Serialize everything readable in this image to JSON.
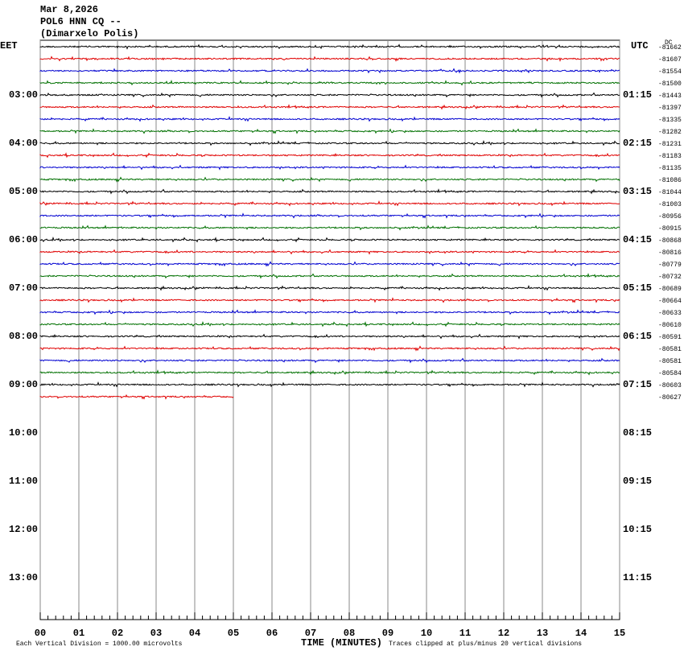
{
  "header": {
    "date": "Mar 8,2026",
    "station": "POL6 HNN CQ --",
    "location": "(Dimarxelo Polis)"
  },
  "left_zone": "EET",
  "right_zone": "UTC",
  "dc_label": "DC",
  "left_hours": [
    "03:00",
    "04:00",
    "05:00",
    "06:00",
    "07:00",
    "08:00",
    "09:00",
    "10:00",
    "11:00",
    "12:00",
    "13:00"
  ],
  "right_hours": [
    "01:15",
    "02:15",
    "03:15",
    "04:15",
    "05:15",
    "06:15",
    "07:15",
    "08:15",
    "09:15",
    "10:15",
    "11:15"
  ],
  "trace_offsets": [
    "-81662",
    "-81607",
    "-81554",
    "-81500",
    "-81443",
    "-81397",
    "-81335",
    "-81282",
    "-81231",
    "-81183",
    "-81135",
    "-81086",
    "-81044",
    "-81003",
    "-80956",
    "-80915",
    "-80868",
    "-80816",
    "-80779",
    "-80732",
    "-80689",
    "-80664",
    "-80633",
    "-80610",
    "-80591",
    "-80581",
    "-80581",
    "-80584",
    "-80603",
    "-80627"
  ],
  "trace_colors": [
    "#000000",
    "#e00000",
    "#0000d0",
    "#007000"
  ],
  "x_ticks": [
    "00",
    "01",
    "02",
    "03",
    "04",
    "05",
    "06",
    "07",
    "08",
    "09",
    "10",
    "11",
    "12",
    "13",
    "14",
    "15"
  ],
  "footer": {
    "scale": "Each Vertical Division = 1000.00 microvolts",
    "axis_title": "TIME (MINUTES)",
    "clip": "Traces clipped at plus/minus 20 vertical divisions"
  }
}
